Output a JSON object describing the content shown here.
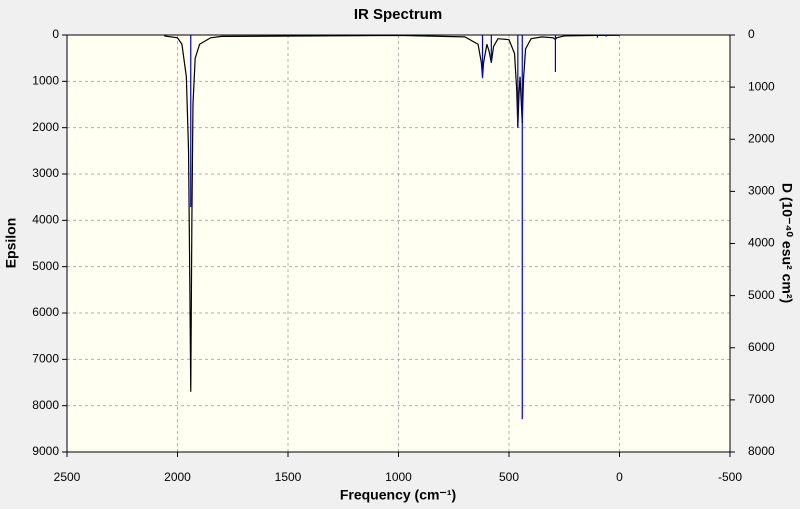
{
  "chart_data": {
    "type": "line",
    "title": "IR Spectrum",
    "xlabel": "Frequency (cm⁻¹)",
    "ylabel": "Epsilon",
    "y2label": "D (10⁻⁴⁰ esu² cm²)",
    "xlim": [
      2500,
      -500
    ],
    "xticks": [
      2500,
      2000,
      1500,
      1000,
      500,
      0,
      -500
    ],
    "ylim": [
      0,
      9000
    ],
    "yticks": [
      0,
      1000,
      2000,
      3000,
      4000,
      5000,
      6000,
      7000,
      8000,
      9000
    ],
    "y2lim": [
      0,
      8000
    ],
    "y2ticks": [
      0,
      1000,
      2000,
      3000,
      4000,
      5000,
      6000,
      7000,
      8000
    ],
    "grid": true,
    "series": [
      {
        "type": "line",
        "color": "#000000",
        "x": [
          2060,
          2000,
          1980,
          1960,
          1950,
          1945,
          1940,
          1935,
          1930,
          1920,
          1900,
          1850,
          1800,
          1000,
          700,
          640,
          625,
          620,
          615,
          600,
          590,
          580,
          570,
          550,
          500,
          475,
          465,
          460,
          455,
          450,
          445,
          440,
          435,
          425,
          400,
          350,
          300,
          295,
          290,
          285,
          250,
          100,
          0
        ],
        "values": [
          20,
          60,
          200,
          900,
          2500,
          5000,
          7700,
          4000,
          1500,
          500,
          200,
          60,
          30,
          10,
          40,
          200,
          600,
          900,
          600,
          200,
          350,
          600,
          250,
          80,
          100,
          400,
          1200,
          2000,
          1300,
          900,
          1400,
          1900,
          1000,
          300,
          80,
          40,
          60,
          80,
          100,
          60,
          20,
          10,
          5
        ]
      },
      {
        "type": "stick",
        "axis": "y2",
        "color": "#0000cc",
        "x": [
          1940,
          620,
          580,
          460,
          440,
          290,
          100,
          60
        ],
        "values": [
          3300,
          830,
          520,
          1770,
          7370,
          710,
          50,
          30
        ]
      }
    ]
  }
}
